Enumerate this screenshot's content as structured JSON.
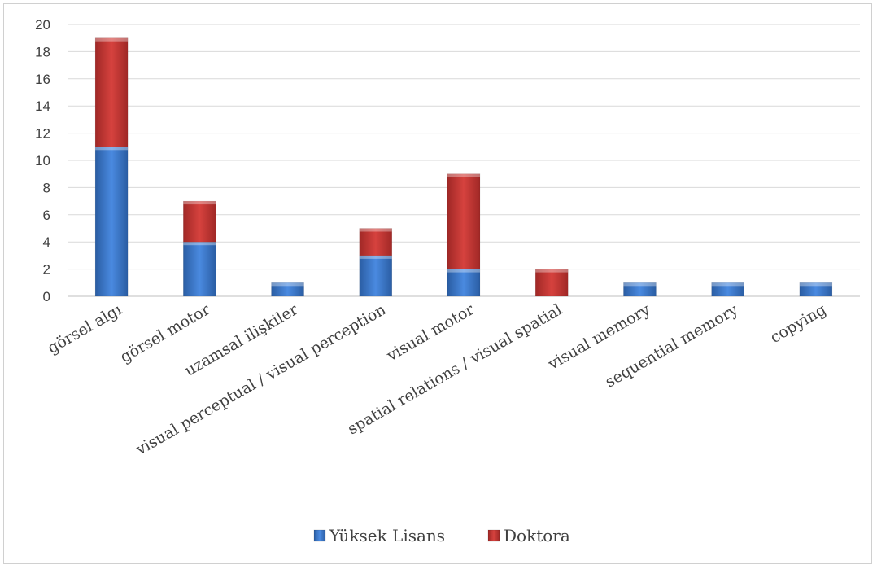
{
  "chart_data": {
    "type": "bar",
    "stacked": true,
    "categories": [
      "görsel algı",
      "görsel motor",
      "uzamsal ilişkiler",
      "visual perceptual / visual perception",
      "visual motor",
      "spatial relations / visual spatial",
      "visual memory",
      "sequential memory",
      "copying"
    ],
    "series": [
      {
        "name": "Yüksek Lisans",
        "color": "#3a78c9",
        "values": [
          11,
          4,
          1,
          3,
          2,
          0,
          1,
          1,
          1
        ]
      },
      {
        "name": "Doktora",
        "color": "#c23633",
        "values": [
          8,
          3,
          0,
          2,
          7,
          2,
          0,
          0,
          0
        ]
      }
    ],
    "ylim": [
      0,
      20
    ],
    "yticks": [
      0,
      2,
      4,
      6,
      8,
      10,
      12,
      14,
      16,
      18,
      20
    ],
    "grid": true,
    "legend_position": "bottom"
  }
}
